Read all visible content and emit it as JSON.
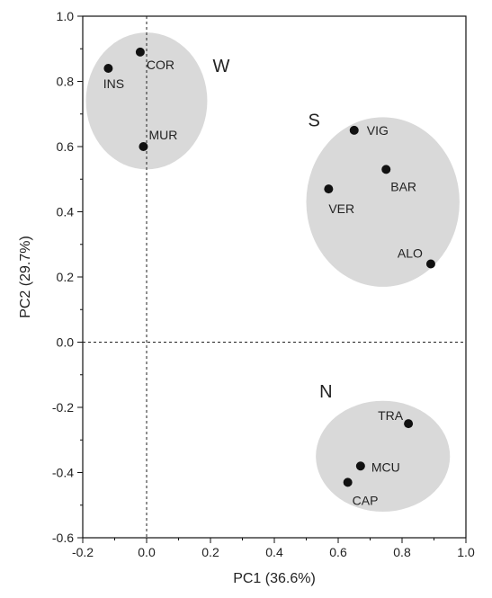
{
  "chart_data": {
    "type": "scatter",
    "title": "",
    "xlabel": "PC1 (36.6%)",
    "ylabel": "PC2 (29.7%)",
    "xlim": [
      -0.2,
      1.0
    ],
    "ylim": [
      -0.6,
      1.0
    ],
    "xticks": [
      -0.2,
      0.0,
      0.2,
      0.4,
      0.6,
      0.8,
      1.0
    ],
    "xtick_labels": [
      "-0.2",
      "0.0",
      "0.2",
      "0.4",
      "0.6",
      "0.8",
      "1.0"
    ],
    "yticks": [
      -0.6,
      -0.4,
      -0.2,
      0.0,
      0.2,
      0.4,
      0.6,
      0.8,
      1.0
    ],
    "ytick_labels": [
      "-0.6",
      "-0.4",
      "-0.2",
      "0.0",
      "0.2",
      "0.4",
      "0.6",
      "0.8",
      "1.0"
    ],
    "reference_lines": {
      "x": 0.0,
      "y": 0.0,
      "style": "dashed"
    },
    "grid": false,
    "point_color": "#111111",
    "group_color": "#d9d9d9",
    "points": [
      {
        "label": "INS",
        "x": -0.12,
        "y": 0.84,
        "group": "W"
      },
      {
        "label": "COR",
        "x": -0.02,
        "y": 0.89,
        "group": "W"
      },
      {
        "label": "MUR",
        "x": -0.01,
        "y": 0.6,
        "group": "W"
      },
      {
        "label": "VIG",
        "x": 0.65,
        "y": 0.65,
        "group": "S"
      },
      {
        "label": "BAR",
        "x": 0.75,
        "y": 0.53,
        "group": "S"
      },
      {
        "label": "VER",
        "x": 0.57,
        "y": 0.47,
        "group": "S"
      },
      {
        "label": "ALO",
        "x": 0.89,
        "y": 0.24,
        "group": "S"
      },
      {
        "label": "TRA",
        "x": 0.82,
        "y": -0.25,
        "group": "N"
      },
      {
        "label": "MCU",
        "x": 0.67,
        "y": -0.38,
        "group": "N"
      },
      {
        "label": "CAP",
        "x": 0.63,
        "y": -0.43,
        "group": "N"
      }
    ],
    "groups": [
      {
        "name": "W",
        "center": [
          0.0,
          0.74
        ],
        "radius": [
          0.19,
          0.21
        ]
      },
      {
        "name": "S",
        "center": [
          0.74,
          0.43
        ],
        "radius": [
          0.24,
          0.26
        ]
      },
      {
        "name": "N",
        "center": [
          0.74,
          -0.35
        ],
        "radius": [
          0.21,
          0.17
        ]
      }
    ]
  }
}
